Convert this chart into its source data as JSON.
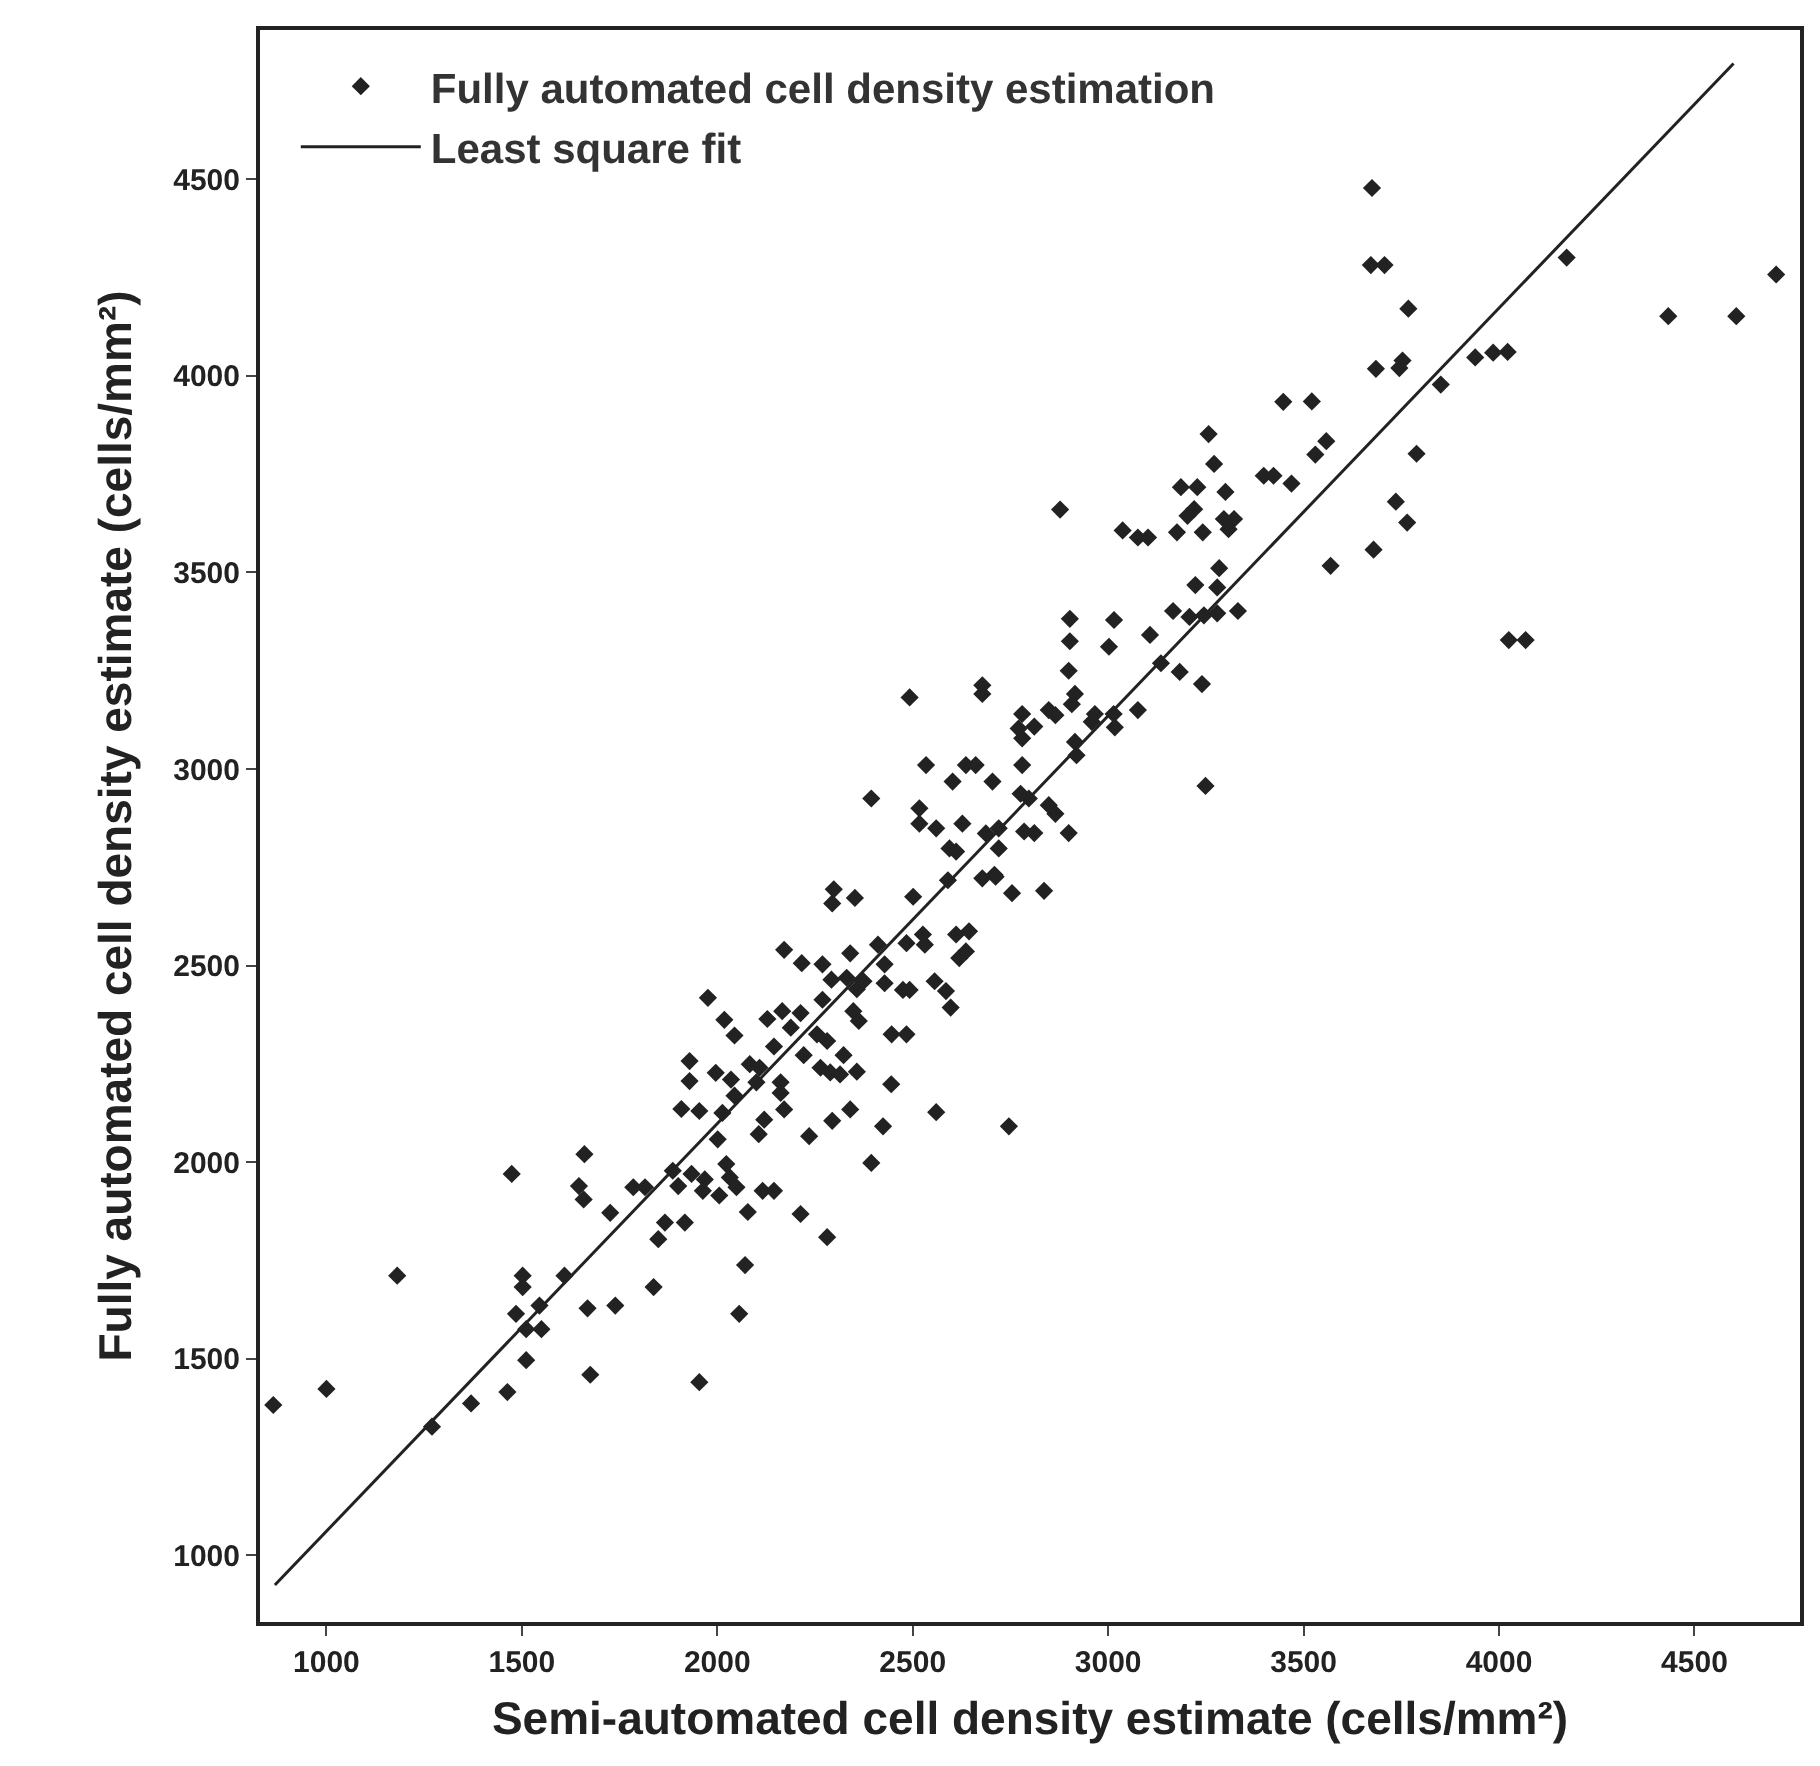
{
  "chart_data": {
    "type": "scatter",
    "xlabel": "Semi-automated cell density estimate (cells/mm²)",
    "ylabel": "Fully automated cell density estimate (cells/mm²)",
    "xlim": [
      830,
      4770
    ],
    "ylim": [
      830,
      4880
    ],
    "xticks": [
      1000,
      1500,
      2000,
      2500,
      3000,
      3500,
      4000,
      4500
    ],
    "yticks": [
      1000,
      1500,
      2000,
      2500,
      3000,
      3500,
      4000,
      4500
    ],
    "grid": false,
    "legend": "top left",
    "marker": "diamond",
    "series": [
      {
        "name": "Fully automated cell density estimation",
        "color": "#222222",
        "x": [
          3675,
          3672,
          3707,
          3768,
          4173,
          4709,
          4433,
          4607,
          3685,
          3745,
          3753,
          3939,
          3985,
          4022,
          3851,
          3448,
          3521,
          3257,
          3271,
          3530,
          3558,
          3398,
          3423,
          3469,
          3186,
          3228,
          3300,
          3789,
          2877,
          3203,
          3220,
          3296,
          3322,
          3308,
          3037,
          3076,
          3102,
          3176,
          3242,
          3736,
          3765,
          3569,
          3679,
          3284,
          3223,
          3279,
          3166,
          3208,
          3245,
          3279,
          3332,
          2902,
          3015,
          3107,
          2902,
          3002,
          3135,
          3183,
          3240,
          2899,
          2915,
          2907,
          2848,
          2865,
          2966,
          3014,
          3017,
          3076,
          2958,
          2811,
          2915,
          2919,
          4025,
          4068,
          3249,
          2848,
          2865,
          2811,
          2899,
          2836,
          2797,
          864,
          1000,
          1181,
          1474,
          1270,
          1370,
          1463,
          1502,
          1502,
          1485,
          1545,
          1511,
          1550,
          1511,
          1609,
          1660,
          1646,
          1658,
          1668,
          1739,
          1675,
          1726,
          1785,
          1815,
          1837,
          1849,
          1866,
          1917,
          1954,
          2056,
          2071,
          2078,
          1886,
          1934,
          1900,
          1968,
          1963,
          2005,
          2023,
          2032,
          2049,
          2116,
          2145,
          2213,
          2281,
          2001,
          2106,
          2120,
          1908,
          1954,
          2013,
          1929,
          1929,
          1996,
          2035,
          2044,
          2083,
          2108,
          2100,
          2162,
          2162,
          2171,
          2235,
          2294,
          2340,
          2424,
          2394,
          2560,
          2746,
          2445,
          2264,
          2289,
          2314,
          2357,
          2221,
          2323,
          2255,
          2281,
          2446,
          2484,
          1976,
          2018,
          2044,
          2128,
          2145,
          2166,
          2188,
          2213,
          2269,
          2171,
          2216,
          2269,
          2292,
          2340,
          2331,
          2357,
          2374,
          2428,
          2428,
          2348,
          2362,
          2411,
          2475,
          2492,
          2484,
          2526,
          2531,
          2556,
          2585,
          2597,
          2611,
          2644,
          2619,
          2636,
          2298,
          2294,
          2352,
          2501,
          2590,
          2712,
          2754,
          2492,
          2678,
          2678,
          2780,
          2771,
          2780,
          2534,
          2636,
          2661,
          2602,
          2704,
          2780,
          2776,
          2394,
          2517,
          2517,
          2560,
          2627,
          2594,
          2611,
          2687,
          2720,
          2785,
          2720,
          2709,
          2678
        ],
        "values": [
          4478,
          4282,
          4282,
          4171,
          4301,
          4258,
          4152,
          4152,
          4018,
          4020,
          4039,
          4047,
          4059,
          4061,
          3978,
          3934,
          3935,
          3852,
          3776,
          3800,
          3834,
          3746,
          3746,
          3726,
          3717,
          3717,
          3705,
          3802,
          3660,
          3644,
          3661,
          3636,
          3636,
          3610,
          3607,
          3589,
          3589,
          3602,
          3602,
          3680,
          3627,
          3517,
          3558,
          3511,
          3468,
          3462,
          3402,
          3387,
          3391,
          3396,
          3402,
          3382,
          3379,
          3341,
          3325,
          3311,
          3269,
          3247,
          3216,
          3250,
          3191,
          3165,
          3150,
          3137,
          3140,
          3140,
          3106,
          3150,
          3120,
          3108,
          3069,
          3035,
          3328,
          3328,
          2957,
          2908,
          2886,
          2837,
          2837,
          2690,
          2925,
          1382,
          1423,
          1711,
          1970,
          1327,
          1386,
          1415,
          1711,
          1682,
          1614,
          1635,
          1575,
          1575,
          1496,
          1711,
          2020,
          1939,
          1905,
          1628,
          1635,
          1459,
          1871,
          1936,
          1936,
          1682,
          1804,
          1846,
          1846,
          1440,
          1614,
          1738,
          1873,
          1978,
          1970,
          1939,
          1956,
          1927,
          1915,
          1995,
          1961,
          1936,
          1927,
          1927,
          1868,
          1809,
          2058,
          2071,
          2108,
          2135,
          2130,
          2125,
          2206,
          2257,
          2227,
          2210,
          2169,
          2249,
          2240,
          2203,
          2203,
          2176,
          2134,
          2066,
          2105,
          2134,
          2091,
          1998,
          2127,
          2091,
          2198,
          2240,
          2228,
          2223,
          2230,
          2272,
          2272,
          2325,
          2308,
          2325,
          2325,
          2418,
          2362,
          2322,
          2364,
          2294,
          2384,
          2342,
          2379,
          2413,
          2540,
          2506,
          2503,
          2464,
          2531,
          2469,
          2440,
          2460,
          2503,
          2455,
          2384,
          2359,
          2553,
          2438,
          2438,
          2557,
          2579,
          2553,
          2460,
          2435,
          2393,
          2579,
          2587,
          2519,
          2536,
          2694,
          2658,
          2672,
          2675,
          2717,
          2726,
          2684,
          3182,
          3213,
          3191,
          3140,
          3103,
          3078,
          3010,
          3010,
          3010,
          2968,
          2968,
          3010,
          2937,
          2925,
          2900,
          2861,
          2849,
          2861,
          2798,
          2790,
          2836,
          2849,
          2841,
          2798,
          2731,
          2722
        ]
      },
      {
        "name": "Least square fit",
        "type": "line",
        "color": "#222222",
        "marker": "none",
        "line_style": "solid",
        "x": [
          868,
          4600
        ],
        "values": [
          924,
          4795
        ]
      }
    ]
  }
}
